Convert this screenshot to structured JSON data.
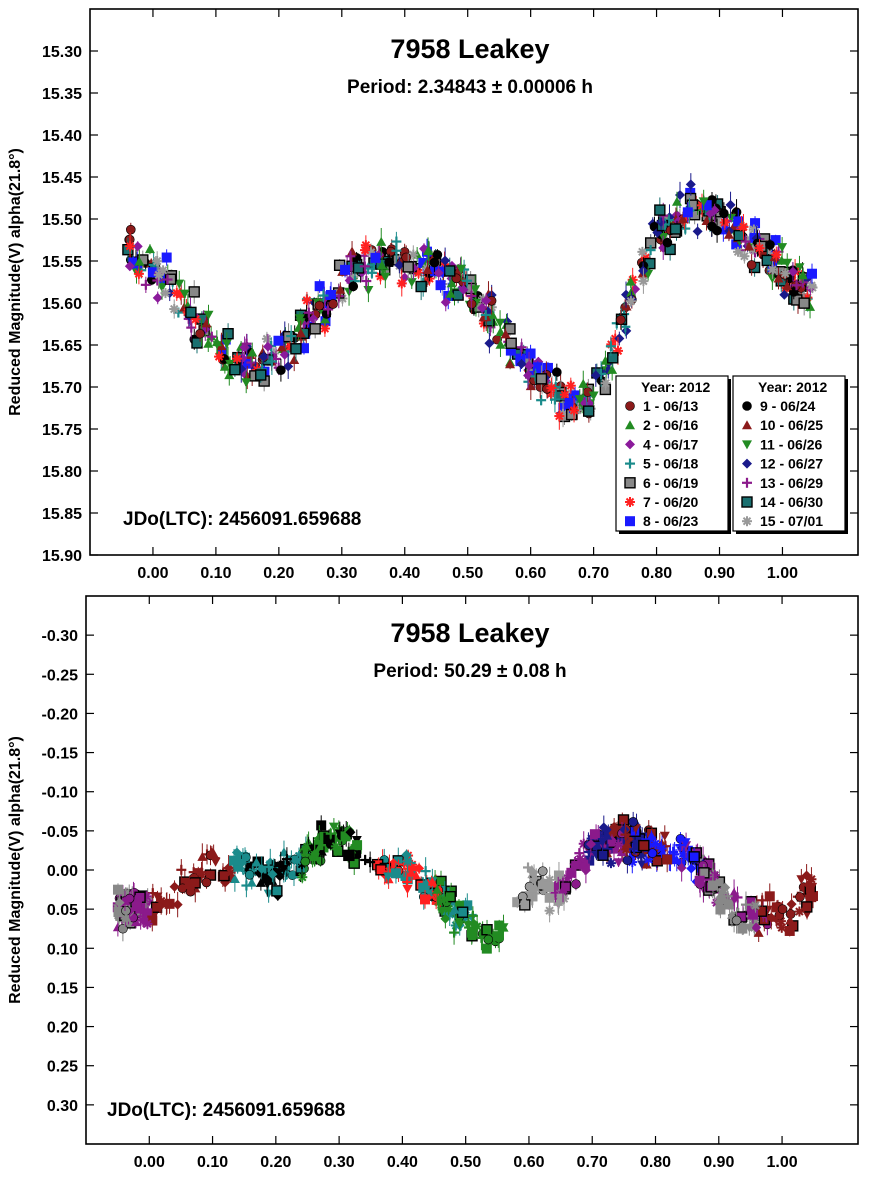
{
  "chart_data": [
    {
      "type": "scatter",
      "title": "7958 Leakey",
      "subtitle": "Period: 2.34843 ± 0.00006 h",
      "ylabel": "Reduced Magnitude(V) alpha(21.8°)",
      "annotation": "JDo(LTC): 2456091.659688",
      "xlim": [
        -0.1,
        1.12
      ],
      "ylim": [
        15.9,
        15.25
      ],
      "y_axis_inverted": true,
      "x_ticks": [
        "0.00",
        "0.10",
        "0.20",
        "0.30",
        "0.40",
        "0.50",
        "0.60",
        "0.70",
        "0.80",
        "0.90",
        "1.00"
      ],
      "y_ticks": [
        "15.30",
        "15.35",
        "15.40",
        "15.45",
        "15.50",
        "15.55",
        "15.60",
        "15.65",
        "15.70",
        "15.75",
        "15.80",
        "15.85",
        "15.90"
      ],
      "grid": false,
      "legend_placement": "bottom-right",
      "legend_title_1": "Year: 2012",
      "legend_title_2": "Year: 2012",
      "series": [
        {
          "name": "1 - 06/13",
          "color": "#8b1a1a",
          "marker": "circle"
        },
        {
          "name": "2 - 06/16",
          "color": "#228b22",
          "marker": "triangle-up"
        },
        {
          "name": "4 - 06/17",
          "color": "#8b1a9b",
          "marker": "diamond"
        },
        {
          "name": "5 - 06/18",
          "color": "#1a8b8b",
          "marker": "plus"
        },
        {
          "name": "6 - 06/19",
          "color": "#888888",
          "marker": "square-outlined"
        },
        {
          "name": "7 - 06/20",
          "color": "#ff2020",
          "marker": "asterisk"
        },
        {
          "name": "8 - 06/23",
          "color": "#1a1aff",
          "marker": "square"
        },
        {
          "name": "9 - 06/24",
          "color": "#000000",
          "marker": "circle"
        },
        {
          "name": "10 - 06/25",
          "color": "#8b1a1a",
          "marker": "triangle-up"
        },
        {
          "name": "11 - 06/26",
          "color": "#228b22",
          "marker": "triangle-down"
        },
        {
          "name": "12 - 06/27",
          "color": "#1a1a8b",
          "marker": "diamond"
        },
        {
          "name": "13 - 06/29",
          "color": "#8b1a8b",
          "marker": "plus"
        },
        {
          "name": "14 - 06/30",
          "color": "#1a7070",
          "marker": "square-outlined"
        },
        {
          "name": "15 - 07/01",
          "color": "#999999",
          "marker": "asterisk"
        }
      ],
      "lightcurve_mean": {
        "x": [
          -0.05,
          0.0,
          0.05,
          0.1,
          0.15,
          0.2,
          0.25,
          0.3,
          0.35,
          0.4,
          0.45,
          0.5,
          0.55,
          0.6,
          0.65,
          0.7,
          0.75,
          0.8,
          0.85,
          0.9,
          0.95,
          1.0,
          1.05
        ],
        "y": [
          15.53,
          15.56,
          15.6,
          15.65,
          15.67,
          15.66,
          15.62,
          15.57,
          15.55,
          15.55,
          15.56,
          15.58,
          15.63,
          15.68,
          15.72,
          15.71,
          15.62,
          15.52,
          15.49,
          15.5,
          15.53,
          15.56,
          15.59
        ]
      }
    },
    {
      "type": "scatter",
      "title": "7958 Leakey",
      "subtitle": "Period: 50.29 ± 0.08 h",
      "ylabel": "Reduced Magnitude(V) alpha(21.8°)",
      "annotation": "JDo(LTC): 2456091.659688",
      "xlim": [
        -0.1,
        1.12
      ],
      "ylim": [
        0.35,
        -0.35
      ],
      "y_axis_inverted": true,
      "x_ticks": [
        "0.00",
        "0.10",
        "0.20",
        "0.30",
        "0.40",
        "0.50",
        "0.60",
        "0.70",
        "0.80",
        "0.90",
        "1.00"
      ],
      "y_ticks": [
        "-0.30",
        "-0.25",
        "-0.20",
        "-0.15",
        "-0.10",
        "-0.05",
        "0.00",
        "0.05",
        "0.10",
        "0.15",
        "0.20",
        "0.25",
        "0.30"
      ],
      "grid": false,
      "clusters": [
        {
          "color": "#8b1a8b",
          "x_range": [
            -0.05,
            0.0
          ],
          "y_center": 0.05
        },
        {
          "color": "#888888",
          "x_range": [
            -0.05,
            0.0
          ],
          "y_center": 0.05
        },
        {
          "color": "#8b1a1a",
          "x_range": [
            0.0,
            0.13
          ],
          "y_center": 0.0
        },
        {
          "color": "#1a8b8b",
          "x_range": [
            0.13,
            0.25
          ],
          "y_center": 0.01
        },
        {
          "color": "#000000",
          "x_range": [
            0.15,
            0.35
          ],
          "y_center": 0.0
        },
        {
          "color": "#228b22",
          "x_range": [
            0.24,
            0.33
          ],
          "y_center": -0.03
        },
        {
          "color": "#ff2020",
          "x_range": [
            0.36,
            0.46
          ],
          "y_center": 0.0
        },
        {
          "color": "#1a8b8b",
          "x_range": [
            0.37,
            0.51
          ],
          "y_center": 0.05
        },
        {
          "color": "#228b22",
          "x_range": [
            0.45,
            0.56
          ],
          "y_center": 0.06
        },
        {
          "color": "#999999",
          "x_range": [
            0.58,
            0.66
          ],
          "y_center": 0.02
        },
        {
          "color": "#8b1a8b",
          "x_range": [
            0.64,
            0.75
          ],
          "y_center": 0.03
        },
        {
          "color": "#1a1a8b",
          "x_range": [
            0.69,
            0.78
          ],
          "y_center": -0.04
        },
        {
          "color": "#8b1a1a",
          "x_range": [
            0.72,
            0.82
          ],
          "y_center": -0.02
        },
        {
          "color": "#1a1aff",
          "x_range": [
            0.76,
            0.88
          ],
          "y_center": -0.03
        },
        {
          "color": "#8b1a8b",
          "x_range": [
            0.84,
            0.98
          ],
          "y_center": 0.04
        },
        {
          "color": "#888888",
          "x_range": [
            0.87,
            0.96
          ],
          "y_center": 0.02
        },
        {
          "color": "#8b1a1a",
          "x_range": [
            0.96,
            1.05
          ],
          "y_center": 0.03
        }
      ],
      "lightcurve_mean": {
        "x": [
          -0.05,
          0.0,
          0.05,
          0.1,
          0.15,
          0.2,
          0.25,
          0.3,
          0.35,
          0.4,
          0.45,
          0.5,
          0.55,
          0.6,
          0.65,
          0.7,
          0.75,
          0.8,
          0.85,
          0.9,
          0.95,
          1.0,
          1.05
        ],
        "y": [
          0.05,
          0.05,
          0.02,
          0.0,
          0.0,
          0.01,
          -0.02,
          -0.04,
          -0.01,
          0.0,
          0.03,
          0.06,
          0.09,
          0.02,
          0.03,
          -0.03,
          -0.04,
          -0.03,
          -0.02,
          0.03,
          0.06,
          0.06,
          0.02
        ]
      }
    }
  ]
}
